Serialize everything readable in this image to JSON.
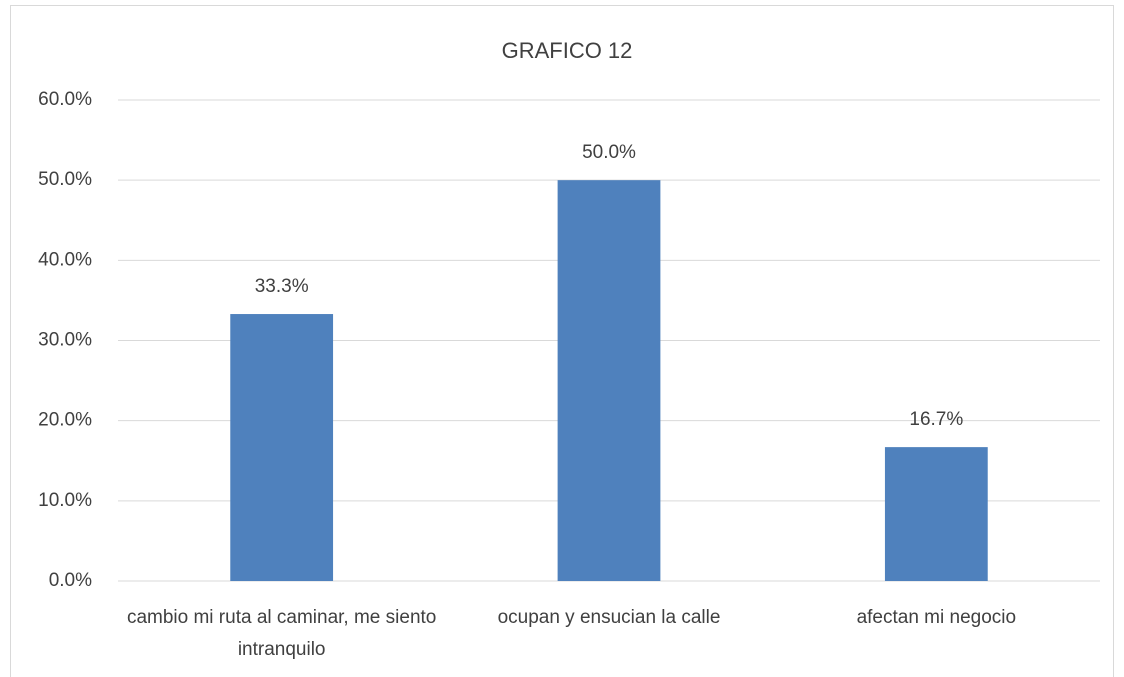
{
  "chart_data": {
    "type": "bar",
    "title": "GRAFICO 12",
    "categories": [
      "cambio mi ruta al caminar, me siento intranquilo",
      "ocupan y ensucian la calle",
      "afectan mi negocio"
    ],
    "values": [
      33.3,
      50.0,
      16.7
    ],
    "value_labels": [
      "33.3%",
      "50.0%",
      "16.7%"
    ],
    "color": "#4f81bd",
    "ylim": [
      0,
      60
    ],
    "yticks": [
      {
        "value": 0,
        "label": "0.0%"
      },
      {
        "value": 10,
        "label": "10.0%"
      },
      {
        "value": 20,
        "label": "20.0%"
      },
      {
        "value": 30,
        "label": "30.0%"
      },
      {
        "value": 40,
        "label": "40.0%"
      },
      {
        "value": 50,
        "label": "50.0%"
      },
      {
        "value": 60,
        "label": "60.0%"
      }
    ],
    "grid": true
  }
}
